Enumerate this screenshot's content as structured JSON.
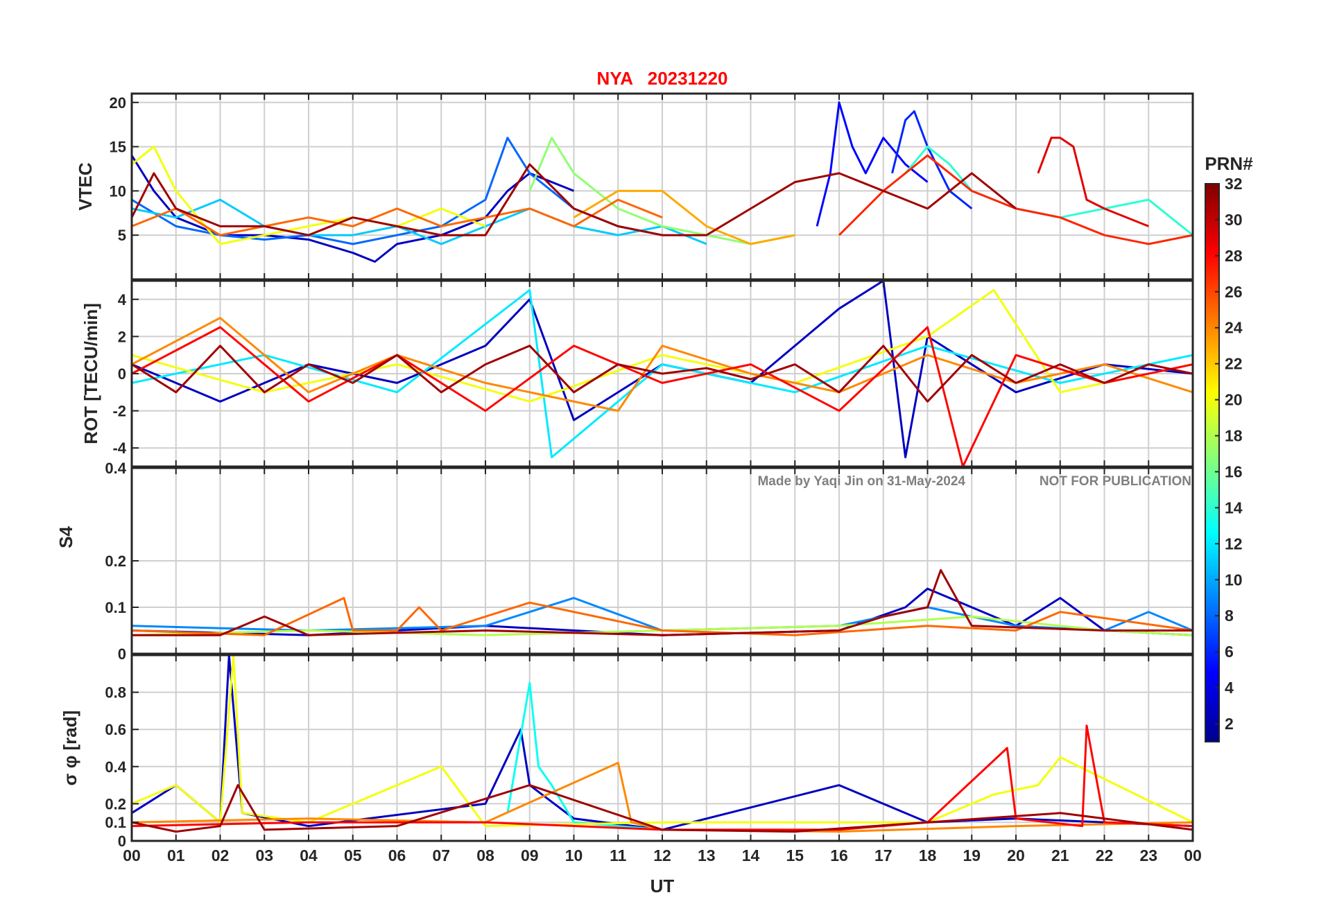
{
  "figure": {
    "title": "NYA   20231220",
    "xlabel": "UT",
    "watermark_left": "Made by Yaqi Jin on 31-May-2024",
    "watermark_right": "NOT FOR PUBLICATION",
    "colorbar_label": "PRN#",
    "colorbar_ticks": [
      "2",
      "4",
      "6",
      "8",
      "10",
      "12",
      "14",
      "16",
      "18",
      "20",
      "22",
      "24",
      "26",
      "28",
      "30",
      "32"
    ],
    "x_ticks": [
      "00",
      "01",
      "02",
      "03",
      "04",
      "05",
      "06",
      "07",
      "08",
      "09",
      "10",
      "11",
      "12",
      "13",
      "14",
      "15",
      "16",
      "17",
      "18",
      "19",
      "20",
      "21",
      "22",
      "23",
      "00"
    ],
    "colors": {
      "title": "#ff0000",
      "text": "#262626",
      "grid": "#cfcfcf",
      "watermark": "#7f7f7f"
    },
    "colormap": "jet",
    "prn_range": [
      1,
      32
    ]
  },
  "chart_data": [
    {
      "type": "line",
      "panel": "vtec",
      "ylabel": "VTEC",
      "ylim": [
        0,
        21
      ],
      "y_ticks": [
        "5",
        "10",
        "15",
        "20"
      ],
      "xlim_hours": [
        0,
        24
      ],
      "grid": true,
      "series": [
        {
          "prn": 3,
          "x": [
            0,
            0.5,
            1,
            2,
            3,
            4,
            5,
            5.5,
            6,
            7,
            8,
            8.5,
            9,
            10
          ],
          "y": [
            14,
            10,
            7,
            5,
            5,
            4.5,
            3,
            2,
            4,
            5,
            7,
            10,
            12,
            10
          ]
        },
        {
          "prn": 5,
          "x": [
            15.5,
            15.8,
            16,
            16.3,
            16.6,
            17,
            17.5,
            18
          ],
          "y": [
            6,
            12,
            20,
            15,
            12,
            16,
            13,
            11
          ]
        },
        {
          "prn": 6,
          "x": [
            17.2,
            17.5,
            17.7,
            18,
            18.5,
            19
          ],
          "y": [
            12,
            18,
            19,
            15,
            10,
            8
          ]
        },
        {
          "prn": 8,
          "x": [
            0,
            1,
            2,
            3,
            4,
            5,
            6,
            7,
            8,
            8.5,
            9,
            10,
            11,
            12
          ],
          "y": [
            9,
            6,
            5,
            4.5,
            5,
            4,
            5,
            6,
            9,
            16,
            12,
            8,
            6,
            5
          ]
        },
        {
          "prn": 11,
          "x": [
            0,
            1,
            2,
            3,
            4,
            5,
            6,
            7,
            8,
            9,
            10,
            11,
            12,
            13
          ],
          "y": [
            8,
            7,
            9,
            6,
            5,
            5,
            6,
            4,
            6,
            8,
            6,
            5,
            6,
            4
          ]
        },
        {
          "prn": 14,
          "x": [
            17.5,
            18,
            18.5,
            19,
            20,
            21,
            22,
            23,
            24
          ],
          "y": [
            12,
            15,
            13,
            10,
            8,
            7,
            8,
            9,
            5
          ]
        },
        {
          "prn": 17,
          "x": [
            9,
            9.5,
            10,
            11,
            12,
            13,
            14,
            15
          ],
          "y": [
            10,
            16,
            12,
            8,
            6,
            5,
            4,
            5
          ]
        },
        {
          "prn": 20,
          "x": [
            0,
            0.5,
            1,
            2,
            3,
            4,
            5,
            6,
            7,
            8
          ],
          "y": [
            13,
            15,
            10,
            4,
            5,
            6,
            7,
            6,
            8,
            6
          ]
        },
        {
          "prn": 23,
          "x": [
            10,
            11,
            12,
            12.5,
            13,
            14,
            15
          ],
          "y": [
            7,
            10,
            10,
            8,
            6,
            4,
            5
          ]
        },
        {
          "prn": 25,
          "x": [
            0,
            1,
            2,
            3,
            4,
            5,
            6,
            7,
            8,
            9,
            10,
            11,
            12
          ],
          "y": [
            6,
            8,
            5,
            6,
            7,
            6,
            8,
            6,
            7,
            8,
            6,
            9,
            7
          ]
        },
        {
          "prn": 27,
          "x": [
            16,
            17,
            18,
            19,
            20,
            21,
            22,
            23,
            24
          ],
          "y": [
            5,
            10,
            14,
            10,
            8,
            7,
            5,
            4,
            5
          ]
        },
        {
          "prn": 29,
          "x": [
            20.5,
            20.8,
            21,
            21.3,
            21.6,
            22,
            23
          ],
          "y": [
            12,
            16,
            16,
            15,
            9,
            8,
            6
          ]
        },
        {
          "prn": 31,
          "x": [
            0,
            0.5,
            1,
            2,
            3,
            4,
            5,
            6,
            7,
            8,
            9,
            10,
            11,
            12,
            13,
            14,
            15,
            16,
            17,
            18,
            19,
            20
          ],
          "y": [
            7,
            12,
            8,
            6,
            6,
            5,
            7,
            6,
            5,
            5,
            13,
            8,
            6,
            5,
            5,
            8,
            11,
            12,
            10,
            8,
            12,
            8
          ]
        }
      ]
    },
    {
      "type": "line",
      "panel": "rot",
      "ylabel": "ROT [TECU/min]",
      "ylim": [
        -5,
        5
      ],
      "y_ticks": [
        "-4",
        "-2",
        "0",
        "2",
        "4"
      ],
      "xlim_hours": [
        0,
        24
      ],
      "grid": true,
      "series": [
        {
          "prn": 3,
          "x": [
            0,
            2,
            4,
            6,
            8,
            9,
            10,
            12,
            14,
            16,
            17,
            17.5,
            18,
            20,
            22,
            24
          ],
          "y": [
            0.5,
            -1.5,
            0.5,
            -0.5,
            1.5,
            4,
            -2.5,
            0.5,
            -0.5,
            3.5,
            5,
            -4.5,
            2,
            -1,
            0.5,
            0
          ]
        },
        {
          "prn": 12,
          "x": [
            0,
            3,
            6,
            9,
            9.5,
            12,
            15,
            18,
            21,
            24
          ],
          "y": [
            -0.5,
            1,
            -1,
            4.5,
            -4.5,
            0.5,
            -1,
            1.5,
            -0.5,
            1
          ]
        },
        {
          "prn": 20,
          "x": [
            0,
            3,
            6,
            9,
            12,
            15,
            18,
            19.5,
            21,
            24
          ],
          "y": [
            1,
            -1,
            0.5,
            -1.5,
            1,
            -0.5,
            2,
            4.5,
            -1,
            0.5
          ]
        },
        {
          "prn": 24,
          "x": [
            0,
            2,
            4,
            6,
            8,
            11,
            12,
            14,
            16,
            18,
            20,
            22,
            24
          ],
          "y": [
            0.5,
            3,
            -1,
            1,
            -0.5,
            -2,
            1.5,
            0,
            -1,
            1,
            -0.5,
            0.5,
            -1
          ]
        },
        {
          "prn": 28,
          "x": [
            0,
            2,
            4,
            6,
            8,
            10,
            12,
            14,
            16,
            18,
            18.8,
            20,
            22,
            24
          ],
          "y": [
            0,
            2.5,
            -1.5,
            1,
            -2,
            1.5,
            -0.5,
            0.5,
            -2,
            2.5,
            -5,
            1,
            -0.5,
            0.5
          ]
        },
        {
          "prn": 31,
          "x": [
            0,
            1,
            2,
            3,
            4,
            5,
            6,
            7,
            8,
            9,
            10,
            11,
            12,
            13,
            14,
            15,
            16,
            17,
            18,
            19,
            20,
            21,
            22,
            23,
            24
          ],
          "y": [
            0.5,
            -1,
            1.5,
            -1,
            0.5,
            -0.5,
            1,
            -1,
            0.5,
            1.5,
            -1,
            0.5,
            0,
            0.3,
            -0.3,
            0.5,
            -1,
            1.5,
            -1.5,
            1,
            -0.5,
            0.5,
            -0.5,
            0.5,
            0
          ]
        }
      ]
    },
    {
      "type": "line",
      "panel": "s4",
      "ylabel": "S4",
      "ylim": [
        0,
        0.4
      ],
      "y_ticks": [
        "0",
        "0.1",
        "0.2",
        "0.4"
      ],
      "xlim_hours": [
        0,
        24
      ],
      "grid": true,
      "series": [
        {
          "prn": 3,
          "x": [
            0,
            4,
            8,
            12,
            16,
            17.5,
            18,
            20,
            21,
            22,
            24
          ],
          "y": [
            0.05,
            0.04,
            0.06,
            0.04,
            0.05,
            0.1,
            0.14,
            0.06,
            0.12,
            0.05,
            0.04
          ]
        },
        {
          "prn": 9,
          "x": [
            0,
            4,
            8,
            10,
            12,
            16,
            18,
            20,
            22,
            23,
            24
          ],
          "y": [
            0.06,
            0.05,
            0.06,
            0.12,
            0.05,
            0.06,
            0.1,
            0.06,
            0.05,
            0.09,
            0.05
          ]
        },
        {
          "prn": 18,
          "x": [
            0,
            4,
            8,
            12,
            16,
            19,
            22,
            24
          ],
          "y": [
            0.04,
            0.05,
            0.04,
            0.05,
            0.06,
            0.08,
            0.05,
            0.04
          ]
        },
        {
          "prn": 25,
          "x": [
            0,
            3,
            4.8,
            5,
            6,
            6.5,
            7,
            9,
            12,
            15,
            18,
            20,
            21,
            24
          ],
          "y": [
            0.05,
            0.04,
            0.12,
            0.05,
            0.05,
            0.1,
            0.05,
            0.11,
            0.05,
            0.04,
            0.06,
            0.05,
            0.09,
            0.05
          ]
        },
        {
          "prn": 31,
          "x": [
            0,
            2,
            3,
            4,
            8,
            12,
            16,
            17,
            18,
            18.3,
            19,
            22,
            24
          ],
          "y": [
            0.04,
            0.04,
            0.08,
            0.04,
            0.05,
            0.04,
            0.05,
            0.08,
            0.1,
            0.18,
            0.06,
            0.05,
            0.05
          ]
        }
      ]
    },
    {
      "type": "line",
      "panel": "sigma_phi",
      "ylabel": "σ φ [rad]",
      "ylim": [
        0,
        1
      ],
      "y_ticks": [
        "0",
        "0.1",
        "0.2",
        "0.4",
        "0.6",
        "0.8"
      ],
      "xlim_hours": [
        0,
        24
      ],
      "grid": true,
      "series": [
        {
          "prn": 3,
          "x": [
            0,
            1,
            2,
            2.2,
            2.5,
            4,
            8,
            8.8,
            9,
            10,
            12,
            16,
            16.5,
            18,
            20,
            24
          ],
          "y": [
            0.15,
            0.3,
            0.1,
            1.0,
            0.15,
            0.08,
            0.2,
            0.6,
            0.3,
            0.12,
            0.06,
            0.3,
            0.25,
            0.1,
            0.12,
            0.08
          ]
        },
        {
          "prn": 13,
          "x": [
            8.5,
            9,
            9.2,
            9.5,
            10,
            11,
            12
          ],
          "y": [
            0.15,
            0.85,
            0.4,
            0.3,
            0.1,
            0.08,
            0.06
          ]
        },
        {
          "prn": 20,
          "x": [
            0,
            1,
            2,
            2.3,
            2.5,
            4,
            7,
            8,
            12,
            18,
            19.5,
            20.5,
            21,
            24
          ],
          "y": [
            0.2,
            0.3,
            0.1,
            1.0,
            0.15,
            0.1,
            0.4,
            0.08,
            0.1,
            0.1,
            0.25,
            0.3,
            0.45,
            0.1
          ]
        },
        {
          "prn": 24,
          "x": [
            0,
            4,
            8,
            11,
            11.3,
            12,
            16,
            20,
            24
          ],
          "y": [
            0.1,
            0.12,
            0.1,
            0.42,
            0.1,
            0.06,
            0.05,
            0.08,
            0.1
          ]
        },
        {
          "prn": 28,
          "x": [
            0,
            4,
            8,
            12,
            16,
            18,
            19.8,
            20,
            21.5,
            21.6,
            22,
            24
          ],
          "y": [
            0.08,
            0.1,
            0.1,
            0.06,
            0.06,
            0.1,
            0.5,
            0.12,
            0.08,
            0.62,
            0.1,
            0.08
          ]
        },
        {
          "prn": 31,
          "x": [
            0,
            1,
            2,
            2.4,
            3,
            6,
            9,
            12,
            15,
            18,
            21,
            24
          ],
          "y": [
            0.1,
            0.05,
            0.08,
            0.3,
            0.06,
            0.08,
            0.3,
            0.06,
            0.05,
            0.1,
            0.15,
            0.06
          ]
        }
      ]
    }
  ]
}
